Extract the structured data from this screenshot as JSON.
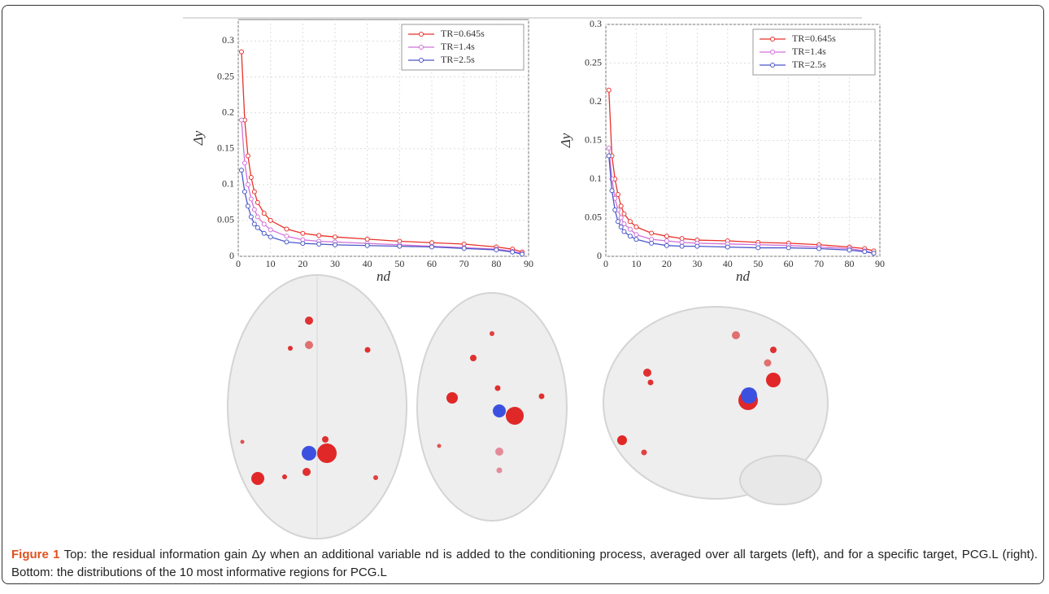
{
  "chart_data": [
    {
      "type": "line",
      "ylabel": "Δy",
      "xlabel": "nd",
      "x": [
        1,
        2,
        3,
        4,
        5,
        6,
        8,
        10,
        15,
        20,
        25,
        30,
        40,
        50,
        60,
        70,
        80,
        85,
        88
      ],
      "xlim": [
        0,
        90
      ],
      "xticks": [
        0,
        10,
        20,
        30,
        40,
        50,
        60,
        70,
        80,
        90
      ],
      "ylim": [
        0,
        0.33
      ],
      "yticks": [
        0,
        0.05,
        0.1,
        0.15,
        0.2,
        0.25,
        0.3
      ],
      "grid": true,
      "legend": "upper right",
      "series": [
        {
          "name": "TR=0.645s",
          "color": "#e8322a",
          "values": [
            0.285,
            0.19,
            0.14,
            0.11,
            0.09,
            0.075,
            0.06,
            0.05,
            0.038,
            0.032,
            0.029,
            0.027,
            0.024,
            0.021,
            0.019,
            0.017,
            0.013,
            0.01,
            0.006
          ]
        },
        {
          "name": "TR=1.4s",
          "color": "#d070d8",
          "values": [
            0.19,
            0.13,
            0.1,
            0.08,
            0.065,
            0.055,
            0.045,
            0.037,
            0.028,
            0.023,
            0.021,
            0.02,
            0.018,
            0.016,
            0.014,
            0.012,
            0.01,
            0.007,
            0.004
          ]
        },
        {
          "name": "TR=2.5s",
          "color": "#4a58c8",
          "values": [
            0.12,
            0.09,
            0.07,
            0.055,
            0.045,
            0.04,
            0.032,
            0.027,
            0.02,
            0.018,
            0.017,
            0.016,
            0.015,
            0.014,
            0.013,
            0.011,
            0.009,
            0.006,
            0.003
          ]
        }
      ]
    },
    {
      "type": "line",
      "ylabel": "Δy",
      "xlabel": "nd",
      "x": [
        1,
        2,
        3,
        4,
        5,
        6,
        8,
        10,
        15,
        20,
        25,
        30,
        40,
        50,
        60,
        70,
        80,
        85,
        88
      ],
      "xlim": [
        0,
        90
      ],
      "xticks": [
        0,
        10,
        20,
        30,
        40,
        50,
        60,
        70,
        80,
        90
      ],
      "ylim": [
        0,
        0.3
      ],
      "yticks": [
        0,
        0.05,
        0.1,
        0.15,
        0.2,
        0.25,
        0.3
      ],
      "grid": true,
      "legend": "upper right",
      "series": [
        {
          "name": "TR=0.645s",
          "color": "#e8322a",
          "values": [
            0.215,
            0.13,
            0.1,
            0.08,
            0.065,
            0.055,
            0.045,
            0.038,
            0.03,
            0.026,
            0.023,
            0.021,
            0.02,
            0.018,
            0.017,
            0.015,
            0.012,
            0.01,
            0.007
          ]
        },
        {
          "name": "TR=1.4s",
          "color": "#d070d8",
          "values": [
            0.14,
            0.1,
            0.075,
            0.06,
            0.05,
            0.042,
            0.035,
            0.028,
            0.022,
            0.02,
            0.018,
            0.017,
            0.016,
            0.015,
            0.014,
            0.012,
            0.01,
            0.007,
            0.004
          ]
        },
        {
          "name": "TR=2.5s",
          "color": "#4a58c8",
          "values": [
            0.13,
            0.085,
            0.06,
            0.045,
            0.038,
            0.032,
            0.026,
            0.022,
            0.017,
            0.014,
            0.013,
            0.013,
            0.012,
            0.011,
            0.011,
            0.01,
            0.008,
            0.006,
            0.004
          ]
        }
      ]
    }
  ],
  "caption": {
    "label": "Figure 1",
    "text": "Top: the residual information gain Δy when an additional variable nd is added to the conditioning process, averaged over all targets (left), and for a specific target, PCG.L (right). Bottom: the distributions of the 10 most informative regions for PCG.L"
  }
}
